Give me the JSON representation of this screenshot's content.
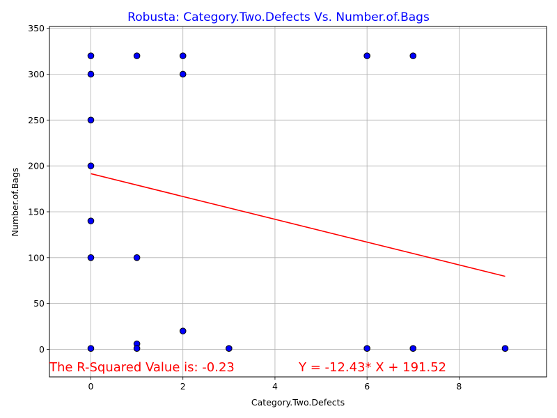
{
  "chart_data": {
    "type": "scatter",
    "title": "Robusta: Category.Two.Defects Vs. Number.of.Bags",
    "xlabel": "Category.Two.Defects",
    "ylabel": "Number.of.Bags",
    "xlim": [
      -0.9,
      9.9
    ],
    "ylim": [
      -30,
      352
    ],
    "xticks": [
      0,
      2,
      4,
      6,
      8
    ],
    "yticks": [
      0,
      50,
      100,
      150,
      200,
      250,
      300,
      350
    ],
    "grid": true,
    "point_color": "#0000ff",
    "line_color": "#ff0000",
    "title_color": "#0000ff",
    "points": [
      {
        "x": 0,
        "y": 320
      },
      {
        "x": 0,
        "y": 300
      },
      {
        "x": 0,
        "y": 250
      },
      {
        "x": 0,
        "y": 200
      },
      {
        "x": 0,
        "y": 140
      },
      {
        "x": 0,
        "y": 100
      },
      {
        "x": 0,
        "y": 1
      },
      {
        "x": 1,
        "y": 320
      },
      {
        "x": 1,
        "y": 100
      },
      {
        "x": 1,
        "y": 6
      },
      {
        "x": 1,
        "y": 1
      },
      {
        "x": 2,
        "y": 320
      },
      {
        "x": 2,
        "y": 300
      },
      {
        "x": 2,
        "y": 20
      },
      {
        "x": 3,
        "y": 1
      },
      {
        "x": 6,
        "y": 320
      },
      {
        "x": 6,
        "y": 1
      },
      {
        "x": 7,
        "y": 320
      },
      {
        "x": 7,
        "y": 1
      },
      {
        "x": 9,
        "y": 1
      }
    ],
    "regression": {
      "slope": -12.43,
      "intercept": 191.52,
      "x_range": [
        0,
        9
      ]
    },
    "annotations": {
      "r_squared": "The R-Squared Value is: -0.23",
      "equation": "Y = -12.43* X + 191.52"
    }
  }
}
